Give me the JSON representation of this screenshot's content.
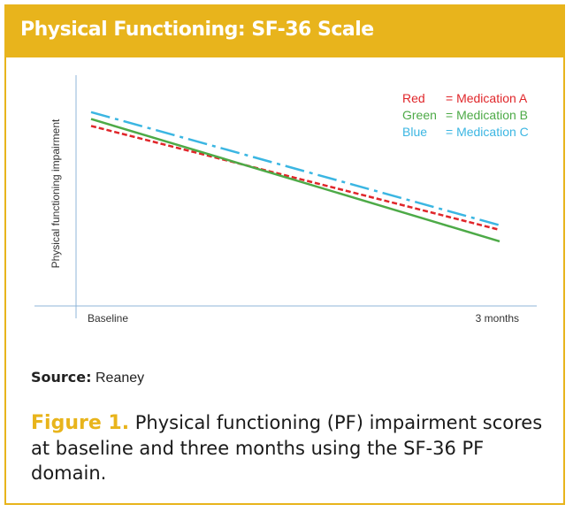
{
  "panel": {
    "title": "Physical Functioning: SF-36 Scale",
    "accent_color": "#e8b41c"
  },
  "source": {
    "label": "Source:",
    "text": "Reaney"
  },
  "caption": {
    "figure_label": "Figure 1.",
    "text": "Physical functioning (PF) impairment scores at baseline and three months using the SF-36 PF domain."
  },
  "chart_data": {
    "type": "line",
    "title": "",
    "xlabel": "",
    "ylabel": "Physical functioning impairment",
    "categories": [
      "Baseline",
      "3 months"
    ],
    "ylim": [
      0,
      100
    ],
    "grid": false,
    "legend": [
      {
        "color_word": "Red",
        "label": "= Medication A",
        "color": "#e0262a"
      },
      {
        "color_word": "Green",
        "label": "= Medication B",
        "color": "#4daa47"
      },
      {
        "color_word": "Blue",
        "label": "= Medication C",
        "color": "#3bb6e2"
      }
    ],
    "series": [
      {
        "name": "Medication A",
        "color": "#e0262a",
        "dash": "6,3",
        "values": [
          78,
          33
        ]
      },
      {
        "name": "Medication B",
        "color": "#4daa47",
        "dash": "",
        "values": [
          81,
          28
        ]
      },
      {
        "name": "Medication C",
        "color": "#3bb6e2",
        "dash": "22,6,4,6",
        "values": [
          84,
          35
        ]
      }
    ]
  }
}
